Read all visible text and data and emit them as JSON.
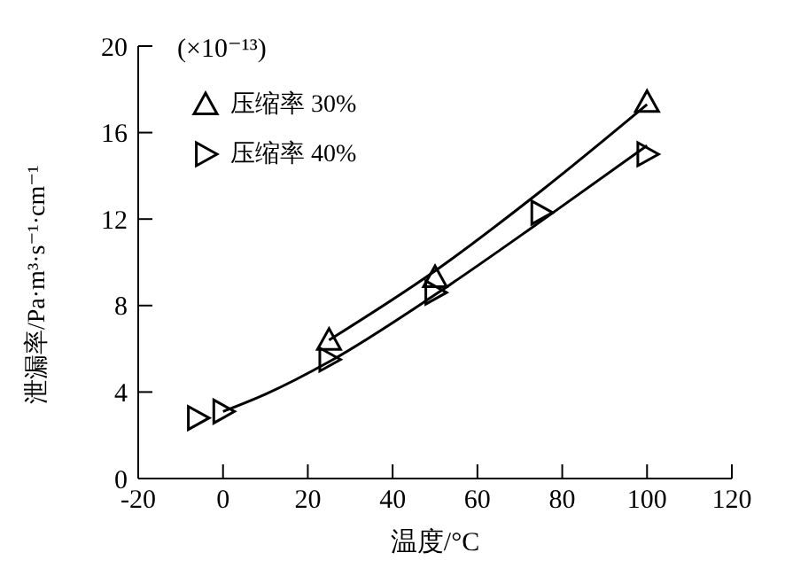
{
  "chart_data": {
    "type": "scatter",
    "xlabel": "温度/°C",
    "ylabel": "泄漏率/Pa·m³·s⁻¹·cm⁻¹",
    "annotations": [
      "(×10⁻¹³)"
    ],
    "xlim": [
      -20,
      120
    ],
    "xticks": [
      -20,
      0,
      20,
      40,
      60,
      80,
      100,
      120
    ],
    "ylim": [
      0,
      20
    ],
    "yticks": [
      0,
      4,
      8,
      12,
      16,
      20
    ],
    "grid": false,
    "legend": "top left",
    "series": [
      {
        "name": "压缩率 30%",
        "marker": "triangle",
        "color": "#000000",
        "x": [
          25,
          50,
          100
        ],
        "values": [
          6.4,
          9.3,
          17.4
        ]
      },
      {
        "name": "压缩率 40%",
        "marker": "triangle-right",
        "color": "#000000",
        "x": [
          -6,
          0,
          25,
          50,
          75,
          100
        ],
        "values": [
          2.8,
          3.1,
          5.5,
          8.6,
          12.3,
          15.0
        ]
      },
      {
        "type": "line",
        "marker": "none",
        "line_style": "solid",
        "color": "#000000",
        "x": [
          25,
          50,
          75,
          100
        ],
        "values": [
          6.4,
          9.6,
          13.3,
          17.3
        ]
      },
      {
        "type": "line",
        "marker": "none",
        "line_style": "solid",
        "color": "#000000",
        "x": [
          0,
          10,
          25,
          50,
          75,
          100
        ],
        "values": [
          3.1,
          3.9,
          5.4,
          8.5,
          11.9,
          15.4
        ]
      }
    ]
  }
}
